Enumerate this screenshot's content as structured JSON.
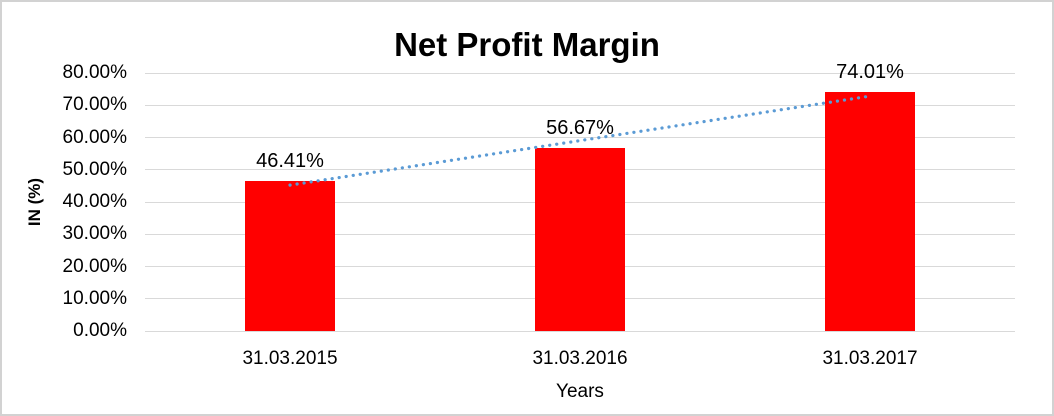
{
  "window": {
    "background_color": "#FFFFFF",
    "border_color": "#D2D2D2"
  },
  "chart_data": {
    "type": "bar",
    "title": "Net Profit Margin",
    "categories": [
      "31.03.2015",
      "31.03.2016",
      "31.03.2017"
    ],
    "series": [
      {
        "name": "Net Profit Margin",
        "values": [
          46.41,
          56.67,
          74.01
        ]
      }
    ],
    "data_labels": [
      "46.41%",
      "56.67%",
      "74.01%"
    ],
    "xlabel": "Years",
    "ylabel": "IN (%)",
    "ylim": [
      0,
      80
    ],
    "ytick_step": 10,
    "ytick_labels": [
      "0.00%",
      "10.00%",
      "20.00%",
      "30.00%",
      "40.00%",
      "50.00%",
      "60.00%",
      "70.00%",
      "80.00%"
    ],
    "grid": true,
    "legend": "none",
    "bar_color": "#FF0000",
    "gridline_color": "#D9D9D9",
    "text_color": "#000000",
    "trendline": {
      "type": "linear",
      "style": "dotted",
      "color": "#5B9BD5",
      "fitted_start_value": 45.23,
      "fitted_end_value": 72.83
    }
  }
}
